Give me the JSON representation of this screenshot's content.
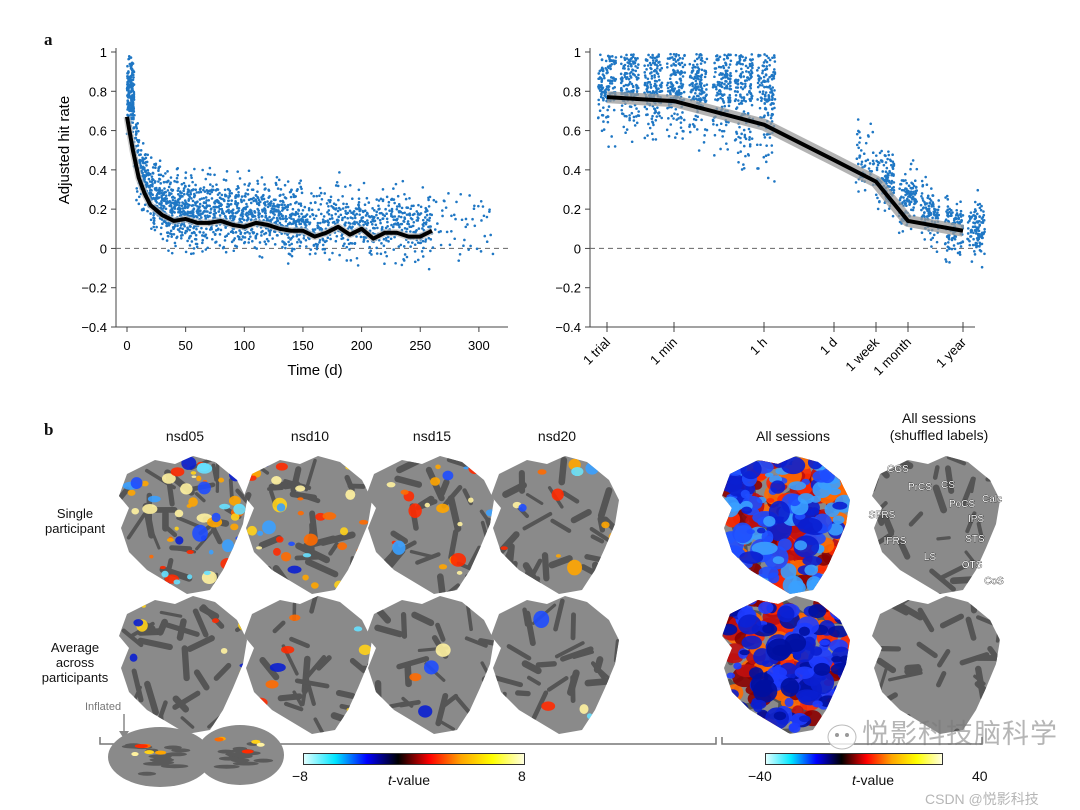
{
  "panel_a_label": "a",
  "panel_b_label": "b",
  "chart_data": [
    {
      "type": "scatter",
      "xlabel": "Time (d)",
      "ylabel": "Adjusted hit rate",
      "xlim": [
        0,
        320
      ],
      "ylim": [
        -0.4,
        1
      ],
      "xticks": [
        "0",
        "50",
        "100",
        "150",
        "200",
        "250",
        "300"
      ],
      "yticks": [
        "1",
        "0.8",
        "0.6",
        "0.4",
        "0.2",
        "0",
        "−0.2",
        "−0.4"
      ],
      "reference_line": {
        "y": 0,
        "style": "dashed"
      },
      "trend_line": {
        "x": [
          0,
          5,
          10,
          15,
          20,
          30,
          40,
          50,
          60,
          70,
          80,
          90,
          100,
          110,
          120,
          130,
          140,
          150,
          160,
          170,
          180,
          190,
          200,
          210,
          220,
          230,
          240,
          250,
          260
        ],
        "y": [
          0.67,
          0.5,
          0.36,
          0.28,
          0.22,
          0.17,
          0.14,
          0.15,
          0.13,
          0.13,
          0.14,
          0.12,
          0.11,
          0.13,
          0.12,
          0.1,
          0.09,
          0.09,
          0.06,
          0.08,
          0.11,
          0.07,
          0.1,
          0.05,
          0.08,
          0.08,
          0.06,
          0.06,
          0.09
        ]
      },
      "point_color": "#1f77c4",
      "trend_color": "#000000"
    },
    {
      "type": "scatter",
      "xlabel": "",
      "ylabel": "",
      "ylim": [
        -0.4,
        1
      ],
      "xticks": [
        "1 trial",
        "1 min",
        "1 h",
        "1 d",
        "1 week",
        "1 month",
        "1 year"
      ],
      "yticks": [
        "1",
        "0.8",
        "0.6",
        "0.4",
        "0.2",
        "0",
        "−0.2",
        "−0.4"
      ],
      "reference_line": {
        "y": 0,
        "style": "dashed"
      },
      "trend_line": {
        "x": [
          "1 trial",
          "1 min",
          "1 h",
          "1 d",
          "1 week",
          "1 month",
          "1 year"
        ],
        "y": [
          0.77,
          0.75,
          0.63,
          0.45,
          0.34,
          0.14,
          0.09
        ]
      },
      "confidence_band": true,
      "point_color": "#1f77c4",
      "trend_color": "#000000",
      "band_color": "#9a9a9a"
    }
  ],
  "panel_b": {
    "columns": [
      "nsd05",
      "nsd10",
      "nsd15",
      "nsd20",
      "All sessions",
      "All sessions\n(shuffled labels)"
    ],
    "columns_display": {
      "c0": "nsd05",
      "c1": "nsd10",
      "c2": "nsd15",
      "c3": "nsd20",
      "c4": "All sessions",
      "c5a": "All sessions",
      "c5b": "(shuffled labels)"
    },
    "rows": {
      "r1a": "Single",
      "r1b": "participant",
      "r2a": "Average",
      "r2b": "across",
      "r2c": "participants"
    },
    "inflated_label": "Inflated",
    "roi_labels": [
      "CGS",
      "PrCS",
      "CS",
      "PoCS",
      "Calc",
      "SFRS",
      "IPS",
      "STS",
      "IFRS",
      "LS",
      "OTS",
      "CoS"
    ],
    "colorbars": [
      {
        "min": "−8",
        "max": "8",
        "label_italic": "t",
        "label_rest": "-value",
        "colors": [
          "#e0ffff",
          "#00e5ff",
          "#0000ff",
          "#000000",
          "#ff0000",
          "#ffa500",
          "#ffff00",
          "#ffffe0"
        ]
      },
      {
        "min": "−40",
        "max": "40",
        "label_italic": "t",
        "label_rest": "-value",
        "colors": [
          "#e0ffff",
          "#00e5ff",
          "#0000ff",
          "#000000",
          "#ff0000",
          "#ffa500",
          "#ffff00",
          "#ffffe0"
        ]
      }
    ]
  },
  "watermark": {
    "main": "悦影科技脑科学",
    "sub": "CSDN @悦影科技"
  }
}
